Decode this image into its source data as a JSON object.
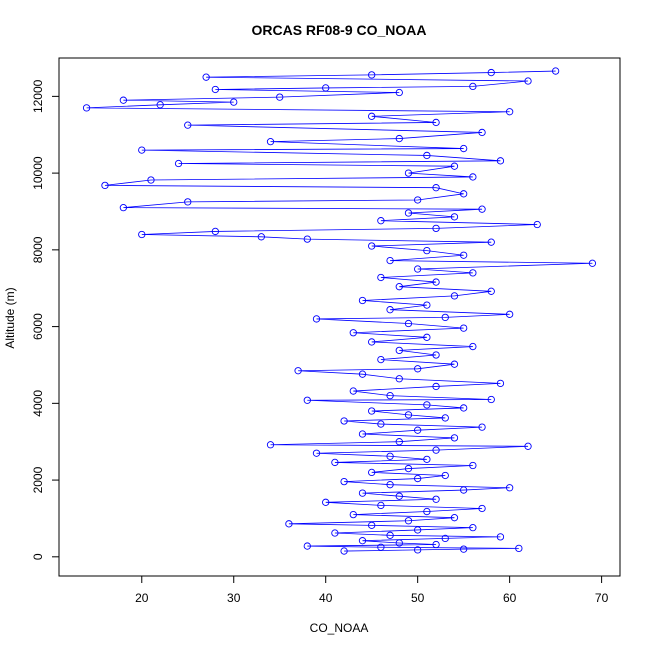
{
  "chart_data": {
    "type": "scatter",
    "title": "ORCAS RF08-9 CO_NOAA",
    "xlabel": "CO_NOAA",
    "ylabel": "Altitude (m)",
    "xlim": [
      11,
      72
    ],
    "ylim": [
      -500,
      13000
    ],
    "x_ticks": [
      20,
      30,
      40,
      50,
      60,
      70
    ],
    "y_ticks": [
      0,
      2000,
      4000,
      6000,
      8000,
      10000,
      12000
    ],
    "marker": "open-circle",
    "connected": true,
    "color": "#0000ff",
    "series": [
      {
        "values": [
          [
            42,
            150
          ],
          [
            50,
            180
          ],
          [
            55,
            200
          ],
          [
            61,
            220
          ],
          [
            46,
            250
          ],
          [
            38,
            280
          ],
          [
            52,
            320
          ],
          [
            48,
            360
          ],
          [
            44,
            420
          ],
          [
            53,
            480
          ],
          [
            59,
            520
          ],
          [
            47,
            560
          ],
          [
            41,
            620
          ],
          [
            50,
            700
          ],
          [
            56,
            760
          ],
          [
            45,
            820
          ],
          [
            36,
            860
          ],
          [
            49,
            940
          ],
          [
            54,
            1020
          ],
          [
            43,
            1100
          ],
          [
            51,
            1180
          ],
          [
            57,
            1260
          ],
          [
            46,
            1340
          ],
          [
            40,
            1420
          ],
          [
            52,
            1500
          ],
          [
            48,
            1580
          ],
          [
            44,
            1660
          ],
          [
            55,
            1740
          ],
          [
            60,
            1800
          ],
          [
            47,
            1880
          ],
          [
            42,
            1960
          ],
          [
            50,
            2040
          ],
          [
            53,
            2120
          ],
          [
            45,
            2200
          ],
          [
            49,
            2300
          ],
          [
            56,
            2380
          ],
          [
            41,
            2460
          ],
          [
            51,
            2540
          ],
          [
            47,
            2620
          ],
          [
            39,
            2700
          ],
          [
            52,
            2780
          ],
          [
            62,
            2880
          ],
          [
            34,
            2920
          ],
          [
            48,
            3000
          ],
          [
            54,
            3100
          ],
          [
            44,
            3200
          ],
          [
            50,
            3300
          ],
          [
            57,
            3380
          ],
          [
            46,
            3460
          ],
          [
            42,
            3540
          ],
          [
            53,
            3620
          ],
          [
            49,
            3700
          ],
          [
            45,
            3800
          ],
          [
            55,
            3880
          ],
          [
            51,
            3960
          ],
          [
            38,
            4080
          ],
          [
            58,
            4100
          ],
          [
            47,
            4200
          ],
          [
            43,
            4320
          ],
          [
            52,
            4440
          ],
          [
            59,
            4520
          ],
          [
            48,
            4640
          ],
          [
            44,
            4760
          ],
          [
            37,
            4850
          ],
          [
            50,
            4900
          ],
          [
            54,
            5020
          ],
          [
            46,
            5140
          ],
          [
            52,
            5260
          ],
          [
            48,
            5380
          ],
          [
            56,
            5480
          ],
          [
            45,
            5600
          ],
          [
            51,
            5720
          ],
          [
            43,
            5840
          ],
          [
            55,
            5960
          ],
          [
            49,
            6080
          ],
          [
            39,
            6200
          ],
          [
            53,
            6240
          ],
          [
            60,
            6320
          ],
          [
            47,
            6440
          ],
          [
            51,
            6560
          ],
          [
            44,
            6680
          ],
          [
            54,
            6800
          ],
          [
            58,
            6920
          ],
          [
            48,
            7040
          ],
          [
            52,
            7160
          ],
          [
            46,
            7280
          ],
          [
            56,
            7400
          ],
          [
            50,
            7500
          ],
          [
            69,
            7650
          ],
          [
            47,
            7720
          ],
          [
            55,
            7860
          ],
          [
            51,
            7980
          ],
          [
            45,
            8100
          ],
          [
            58,
            8200
          ],
          [
            38,
            8280
          ],
          [
            33,
            8340
          ],
          [
            20,
            8400
          ],
          [
            28,
            8480
          ],
          [
            52,
            8560
          ],
          [
            63,
            8660
          ],
          [
            46,
            8760
          ],
          [
            54,
            8860
          ],
          [
            49,
            8960
          ],
          [
            57,
            9060
          ],
          [
            18,
            9100
          ],
          [
            25,
            9250
          ],
          [
            50,
            9300
          ],
          [
            55,
            9460
          ],
          [
            52,
            9620
          ],
          [
            16,
            9680
          ],
          [
            21,
            9820
          ],
          [
            56,
            9900
          ],
          [
            49,
            10000
          ],
          [
            54,
            10180
          ],
          [
            24,
            10250
          ],
          [
            59,
            10320
          ],
          [
            51,
            10460
          ],
          [
            20,
            10600
          ],
          [
            55,
            10640
          ],
          [
            34,
            10820
          ],
          [
            48,
            10900
          ],
          [
            57,
            11060
          ],
          [
            25,
            11250
          ],
          [
            52,
            11320
          ],
          [
            45,
            11480
          ],
          [
            60,
            11600
          ],
          [
            14,
            11700
          ],
          [
            22,
            11780
          ],
          [
            30,
            11850
          ],
          [
            18,
            11900
          ],
          [
            35,
            11980
          ],
          [
            48,
            12100
          ],
          [
            28,
            12180
          ],
          [
            40,
            12220
          ],
          [
            56,
            12260
          ],
          [
            62,
            12400
          ],
          [
            27,
            12500
          ],
          [
            45,
            12560
          ],
          [
            58,
            12620
          ],
          [
            65,
            12660
          ]
        ]
      }
    ]
  }
}
